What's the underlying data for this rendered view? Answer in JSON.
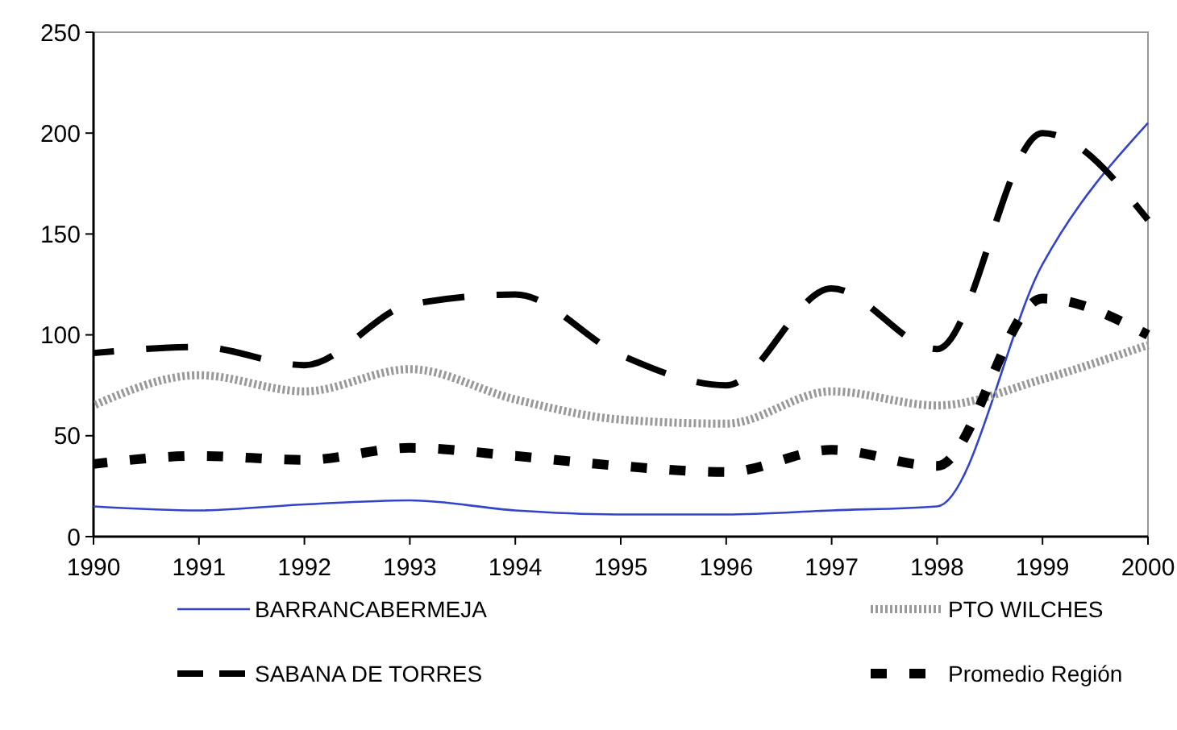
{
  "chart_data": {
    "type": "line",
    "x": [
      1990,
      1991,
      1992,
      1993,
      1994,
      1995,
      1996,
      1997,
      1998,
      1999,
      2000
    ],
    "xlim": [
      1990,
      2000
    ],
    "xticks": [
      1990,
      1991,
      1992,
      1993,
      1994,
      1995,
      1996,
      1997,
      1998,
      1999,
      2000
    ],
    "ylim": [
      0,
      250
    ],
    "yticks": [
      0,
      50,
      100,
      150,
      200,
      250
    ],
    "grid": false,
    "legend": "bottom",
    "marker": "none",
    "series": [
      {
        "name": "BARRANCABERMEJA",
        "color": "#3344cc",
        "line_style": "solid",
        "values": [
          15,
          13,
          16,
          18,
          13,
          11,
          11,
          13,
          15,
          135,
          205
        ]
      },
      {
        "name": "PTO WILCHES",
        "color": "#999999",
        "line_style": "dotted",
        "values": [
          65,
          80,
          72,
          83,
          68,
          58,
          56,
          72,
          65,
          78,
          95
        ]
      },
      {
        "name": "SABANA DE TORRES",
        "color": "#000000",
        "line_style": "dashed",
        "values": [
          91,
          94,
          85,
          115,
          120,
          90,
          75,
          123,
          93,
          200,
          157
        ]
      },
      {
        "name": "Promedio Región",
        "color": "#000000",
        "line_style": "dashed",
        "values": [
          36,
          40,
          38,
          44,
          40,
          35,
          32,
          43,
          35,
          118,
          100
        ]
      }
    ]
  }
}
